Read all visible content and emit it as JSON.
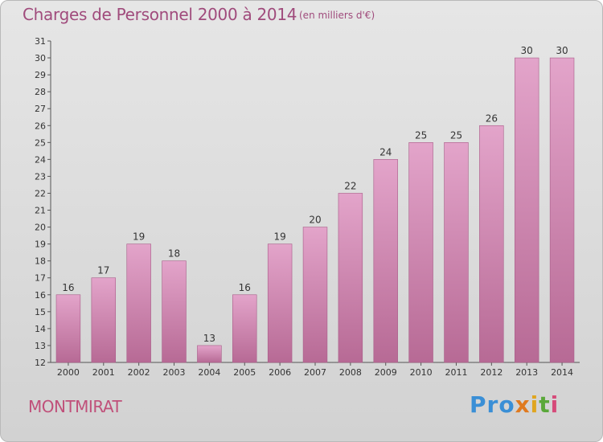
{
  "title": "Charges de Personnel 2000 à 2014",
  "subtitle": "(en milliers d'€)",
  "town": "MONTMIRAT",
  "logo": [
    "Pro",
    "x",
    "i",
    "t",
    "i"
  ],
  "colors": {
    "title": "#a04b7c",
    "bar_top": "#e3a4ca",
    "bar_bottom": "#b76a95",
    "bar_edge": "#a85c88",
    "axis": "#555555"
  },
  "chart_data": {
    "type": "bar",
    "categories": [
      "2000",
      "2001",
      "2002",
      "2003",
      "2004",
      "2005",
      "2006",
      "2007",
      "2008",
      "2009",
      "2010",
      "2011",
      "2012",
      "2013",
      "2014"
    ],
    "values": [
      16,
      17,
      19,
      18,
      13,
      16,
      19,
      20,
      22,
      24,
      25,
      25,
      26,
      30,
      30
    ],
    "data_labels": [
      "16",
      "17",
      "19",
      "18",
      "13",
      "16",
      "19",
      "20",
      "22",
      "24",
      "25",
      "25",
      "26",
      "30",
      "30"
    ],
    "ylim": [
      12,
      31
    ],
    "yticks": [
      "12",
      "13",
      "14",
      "15",
      "16",
      "17",
      "18",
      "19",
      "20",
      "21",
      "22",
      "23",
      "24",
      "25",
      "26",
      "27",
      "28",
      "29",
      "30",
      "31"
    ],
    "xlabel": "",
    "ylabel": "",
    "grid": false,
    "legend": "none"
  }
}
